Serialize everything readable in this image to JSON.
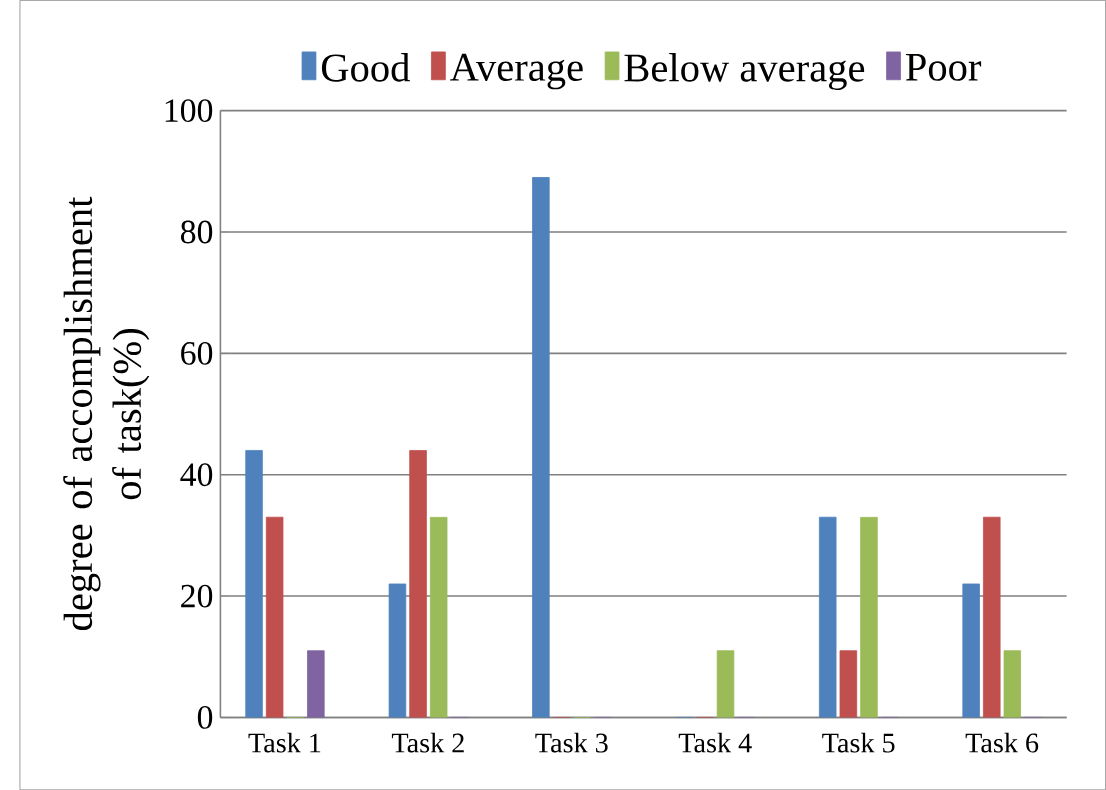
{
  "chart_data": {
    "type": "bar",
    "ylabel": "degree of accomplishment of task(%)",
    "categories": [
      "Task 1",
      "Task 2",
      "Task 3",
      "Task 4",
      "Task 5",
      "Task 6"
    ],
    "series": [
      {
        "name": "Good",
        "color": "#4f81bd",
        "values": [
          44,
          22,
          89,
          0,
          33,
          22
        ]
      },
      {
        "name": "Average",
        "color": "#c0504d",
        "values": [
          33,
          44,
          0,
          0,
          11,
          33
        ]
      },
      {
        "name": "Below average",
        "color": "#9bbb59",
        "values": [
          0,
          33,
          0,
          11,
          33,
          11
        ]
      },
      {
        "name": "Poor",
        "color": "#8064a2",
        "values": [
          11,
          0,
          0,
          0,
          0,
          0
        ]
      }
    ],
    "ylim": [
      0,
      100
    ],
    "yticks": [
      0,
      20,
      40,
      60,
      80,
      100
    ],
    "grid": "y",
    "legend": "top"
  }
}
